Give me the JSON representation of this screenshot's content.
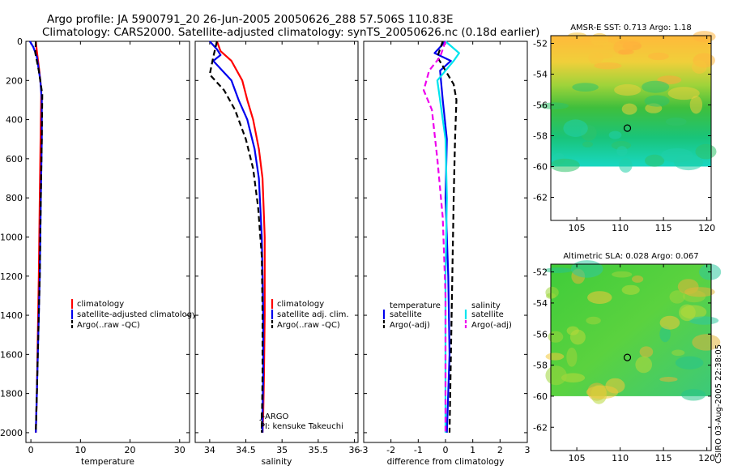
{
  "title": {
    "line1": "Argo profile: JA 5900791_20 26-Jun-2005 20050626_288 57.506S 110.83E",
    "line2": "Climatology: CARS2000. Satellite-adjusted climatology: synTS_20050626.nc (0.18d earlier)"
  },
  "side_stamp": "CSIRO 03-Aug-2005 22:38:05",
  "pi_text": {
    "line1": "J-ARGO",
    "line2": "PI: kensuke Takeuchi"
  },
  "colors": {
    "red": "#ff0000",
    "blue": "#0000ee",
    "black": "#000000",
    "cyan": "#00e5ee",
    "magenta": "#ee00ee"
  },
  "chart_data": [
    {
      "type": "line",
      "xlabel": "temperature",
      "xlim": [
        -1,
        32
      ],
      "ylim": [
        0,
        2050
      ],
      "y_inverted": true,
      "xticks": [
        0,
        10,
        20,
        30
      ],
      "yticks": [
        0,
        200,
        400,
        600,
        800,
        1000,
        1200,
        1400,
        1600,
        1800,
        2000
      ],
      "legend": {
        "placement": "center-right",
        "entries": [
          "climatology",
          "satellite-adjusted climatology",
          "Argo(..raw -QC)"
        ]
      },
      "series": [
        {
          "name": "climatology",
          "color": "red",
          "style": "solid",
          "x": [
            1.0,
            1.2,
            1.7,
            2.1,
            2.0,
            1.8,
            1.6,
            1.4,
            1.2,
            1.0
          ],
          "y": [
            0,
            50,
            150,
            250,
            400,
            800,
            1200,
            1500,
            1800,
            2000
          ]
        },
        {
          "name": "satellite-adjusted climatology",
          "color": "blue",
          "style": "solid",
          "x": [
            -0.2,
            0.5,
            1.2,
            1.9,
            2.2,
            2.2,
            2.0,
            1.8,
            1.5,
            1.2,
            1.0
          ],
          "y": [
            0,
            30,
            80,
            200,
            300,
            500,
            800,
            1200,
            1500,
            1800,
            2000
          ]
        },
        {
          "name": "Argo(..raw -QC)",
          "color": "black",
          "style": "dashed",
          "x": [
            1.0,
            0.9,
            1.6,
            2.3,
            2.2,
            2.0,
            1.8,
            1.5,
            1.2,
            1.0
          ],
          "y": [
            0,
            60,
            150,
            270,
            500,
            800,
            1200,
            1500,
            1800,
            2000
          ]
        }
      ]
    },
    {
      "type": "line",
      "xlabel": "salinity",
      "xlim": [
        33.8,
        36.05
      ],
      "ylim": [
        0,
        2050
      ],
      "y_inverted": true,
      "xticks": [
        34,
        34.5,
        35,
        35.5,
        36
      ],
      "legend": {
        "placement": "center-right",
        "entries": [
          "climatology",
          "satellite adj. clim.",
          "Argo(..raw -QC)"
        ]
      },
      "series": [
        {
          "name": "climatology",
          "color": "red",
          "style": "solid",
          "x": [
            34.1,
            34.15,
            34.3,
            34.45,
            34.52,
            34.6,
            34.68,
            34.73,
            34.76,
            34.76,
            34.75,
            34.74,
            34.73
          ],
          "y": [
            0,
            50,
            100,
            200,
            300,
            400,
            550,
            700,
            1000,
            1400,
            1700,
            1900,
            2000
          ]
        },
        {
          "name": "satellite adj. clim.",
          "color": "blue",
          "style": "solid",
          "x": [
            34.0,
            34.1,
            34.15,
            34.05,
            34.3,
            34.4,
            34.52,
            34.62,
            34.68,
            34.72,
            34.74,
            34.74,
            34.73,
            34.73
          ],
          "y": [
            0,
            40,
            70,
            100,
            200,
            300,
            400,
            550,
            700,
            1000,
            1400,
            1700,
            1900,
            2000
          ]
        },
        {
          "name": "Argo(..raw -QC)",
          "color": "black",
          "style": "dashed",
          "x": [
            34.1,
            34.05,
            34.0,
            34.2,
            34.35,
            34.5,
            34.6,
            34.67,
            34.72,
            34.73,
            34.73,
            34.72
          ],
          "y": [
            0,
            80,
            170,
            250,
            350,
            500,
            650,
            850,
            1100,
            1400,
            1700,
            2000
          ]
        }
      ]
    },
    {
      "type": "line",
      "xlabel": "difference from climatology",
      "xlim": [
        -3,
        3
      ],
      "ylim": [
        0,
        2050
      ],
      "y_inverted": true,
      "xticks": [
        -3,
        -2,
        -1,
        0,
        1,
        2,
        3
      ],
      "legend": {
        "placement": "center",
        "entries_left": [
          "temperature",
          "satellite",
          "Argo(-adj)"
        ],
        "entries_right": [
          "salinity",
          "satellite",
          "Argo(-adj)"
        ]
      },
      "series": [
        {
          "name": "satellite",
          "group": "temperature",
          "color": "blue",
          "style": "solid",
          "x": [
            0.0,
            -0.4,
            0.2,
            -0.2,
            -0.1,
            0.05,
            0.0,
            0.1,
            0.15,
            0.05
          ],
          "y": [
            0,
            60,
            100,
            150,
            300,
            500,
            800,
            1200,
            1600,
            2000
          ]
        },
        {
          "name": "Argo(-adj)",
          "group": "temperature",
          "color": "black",
          "style": "dashed",
          "x": [
            -0.1,
            -0.3,
            0.0,
            0.3,
            0.4,
            0.35,
            0.3,
            0.25,
            0.2,
            0.15
          ],
          "y": [
            0,
            80,
            150,
            220,
            300,
            500,
            800,
            1200,
            1600,
            2000
          ]
        },
        {
          "name": "satellite",
          "group": "salinity",
          "color": "cyan",
          "style": "solid",
          "x": [
            0.0,
            0.5,
            0.3,
            -0.3,
            -0.2,
            0.0,
            0.05,
            0.0,
            0.0
          ],
          "y": [
            0,
            60,
            100,
            200,
            300,
            500,
            800,
            1200,
            2000
          ]
        },
        {
          "name": "Argo(-adj)",
          "group": "salinity",
          "color": "magenta",
          "style": "dashed",
          "x": [
            0.0,
            -0.2,
            -0.6,
            -0.8,
            -0.5,
            -0.3,
            -0.1,
            0.0,
            0.0
          ],
          "y": [
            0,
            80,
            150,
            250,
            350,
            600,
            900,
            1300,
            2000
          ]
        }
      ]
    },
    {
      "type": "heatmap",
      "title": "AMSR-E SST: 0.713 Argo: 1.18",
      "xlim": [
        102,
        120.5
      ],
      "ylim": [
        -63.5,
        -51.5
      ],
      "xticks": [
        105,
        110,
        115,
        120
      ],
      "yticks": [
        -52,
        -54,
        -56,
        -58,
        -60,
        -62
      ],
      "data_ymin": -60,
      "marker": {
        "lon": 110.83,
        "lat": -57.506
      },
      "palette": "sst"
    },
    {
      "type": "heatmap",
      "title": "Altimetric SLA: 0.028 Argo: 0.067",
      "xlim": [
        102,
        120.5
      ],
      "ylim": [
        -63.5,
        -51.5
      ],
      "xticks": [
        105,
        110,
        115,
        120
      ],
      "yticks": [
        -52,
        -54,
        -56,
        -58,
        -60,
        -62
      ],
      "data_ymin": -60,
      "marker": {
        "lon": 110.83,
        "lat": -57.506
      },
      "palette": "sla"
    }
  ]
}
